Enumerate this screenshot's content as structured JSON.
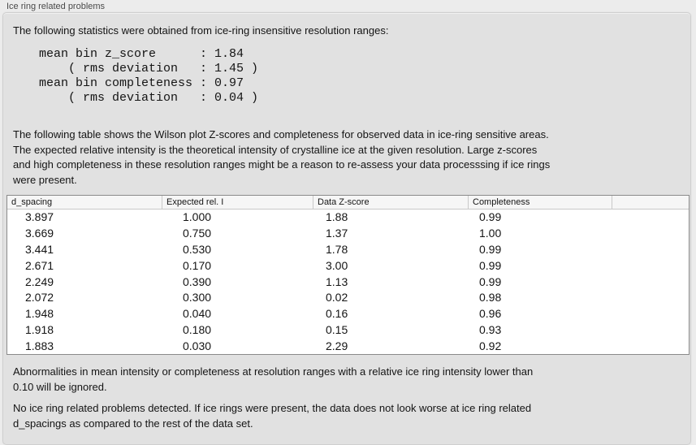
{
  "panel": {
    "title": "Ice ring related problems"
  },
  "intro": "The following statistics were obtained from ice-ring insensitive resolution ranges:",
  "stats_block": "mean bin z_score      : 1.84\n    ( rms deviation   : 1.45 )\nmean bin completeness : 0.97\n    ( rms deviation   : 0.04 )",
  "stats": {
    "mean_bin_z_score": "1.84",
    "z_score_rms_deviation": "1.45",
    "mean_bin_completeness": "0.97",
    "completeness_rms_deviation": "0.04"
  },
  "table_description": "The following table shows the Wilson plot Z-scores and completeness for observed data in ice-ring sensitive areas.\nThe expected relative intensity is the theoretical intensity of crystalline ice at the given resolution. Large z-scores\nand high completeness in these resolution ranges might be a reason to re-assess your data processsing if ice rings\nwere present.",
  "table": {
    "headers": [
      "d_spacing",
      "Expected rel. I",
      "Data Z-score",
      "Completeness"
    ],
    "rows": [
      [
        "3.897",
        "1.000",
        "1.88",
        "0.99"
      ],
      [
        "3.669",
        "0.750",
        "1.37",
        "1.00"
      ],
      [
        "3.441",
        "0.530",
        "1.78",
        "0.99"
      ],
      [
        "2.671",
        "0.170",
        "3.00",
        "0.99"
      ],
      [
        "2.249",
        "0.390",
        "1.13",
        "0.99"
      ],
      [
        "2.072",
        "0.300",
        "0.02",
        "0.98"
      ],
      [
        "1.948",
        "0.040",
        "0.16",
        "0.96"
      ],
      [
        "1.918",
        "0.180",
        "0.15",
        "0.93"
      ],
      [
        "1.883",
        "0.030",
        "2.29",
        "0.92"
      ]
    ]
  },
  "note_ignore": "Abnormalities in mean intensity or completeness at resolution ranges with a relative ice ring intensity lower than\n0.10 will be ignored.",
  "conclusion": "No ice ring related problems detected. If ice rings were present, the data does not look worse at ice ring related\nd_spacings as compared to the rest of the data set.",
  "colors": {
    "page-bg": "#ececec",
    "panel-bg": "#e1e1e1",
    "panel-border": "#cfcfcf",
    "table-bg": "#ffffff",
    "table-border": "#8a8a8a",
    "header-bg": "#f6f6f6",
    "header-separator": "#c9c9c9",
    "text": "#141414",
    "title-text": "#4a4a4a"
  }
}
